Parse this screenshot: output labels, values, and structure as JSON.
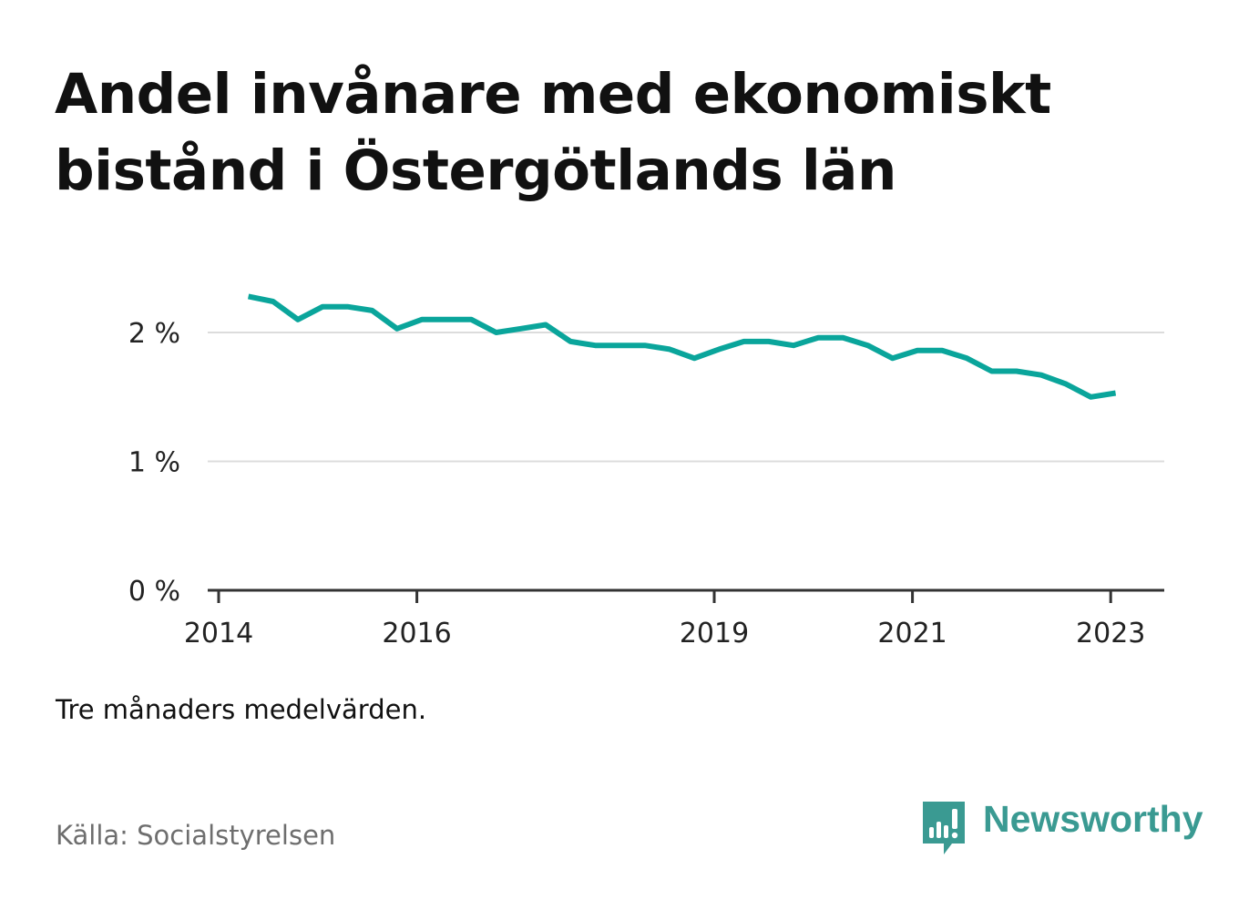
{
  "title": "Andel invånare med ekonomiskt bistånd i Östergötlands län",
  "note": "Tre månaders medelvärden.",
  "source": "Källa: Socialstyrelsen",
  "brand": {
    "name": "Newsworthy",
    "color": "#3a9a92"
  },
  "chart_data": {
    "type": "line",
    "title": "Andel invånare med ekonomiskt bistånd i Östergötlands län",
    "xlabel": "",
    "ylabel": "",
    "y_ticks": [
      {
        "value": 0,
        "label": "0 %"
      },
      {
        "value": 1,
        "label": "1 %"
      },
      {
        "value": 2,
        "label": "2 %"
      }
    ],
    "x_ticks": [
      {
        "value": 2014,
        "label": "2014"
      },
      {
        "value": 2016,
        "label": "2016"
      },
      {
        "value": 2019,
        "label": "2019"
      },
      {
        "value": 2021,
        "label": "2021"
      },
      {
        "value": 2023,
        "label": "2023"
      }
    ],
    "xlim": [
      2014,
      2023.5
    ],
    "ylim": [
      0,
      2.5
    ],
    "grid": true,
    "line_color": "#0aa59b",
    "series": [
      {
        "x": [
          2014.3,
          2014.55,
          2014.8,
          2015.05,
          2015.3,
          2015.55,
          2015.8,
          2016.05,
          2016.3,
          2016.55,
          2016.8,
          2017.05,
          2017.3,
          2017.55,
          2017.8,
          2018.05,
          2018.3,
          2018.55,
          2018.8,
          2019.05,
          2019.3,
          2019.55,
          2019.8,
          2020.05,
          2020.3,
          2020.55,
          2020.8,
          2021.05,
          2021.3,
          2021.55,
          2021.8,
          2022.05,
          2022.3,
          2022.55,
          2022.8,
          2023.05
        ],
        "y": [
          2.28,
          2.24,
          2.1,
          2.2,
          2.2,
          2.17,
          2.03,
          2.1,
          2.1,
          2.1,
          2.0,
          2.03,
          2.06,
          1.93,
          1.9,
          1.9,
          1.9,
          1.87,
          1.8,
          1.87,
          1.93,
          1.93,
          1.9,
          1.96,
          1.96,
          1.9,
          1.8,
          1.86,
          1.86,
          1.8,
          1.7,
          1.7,
          1.67,
          1.6,
          1.5,
          1.53
        ]
      }
    ]
  }
}
